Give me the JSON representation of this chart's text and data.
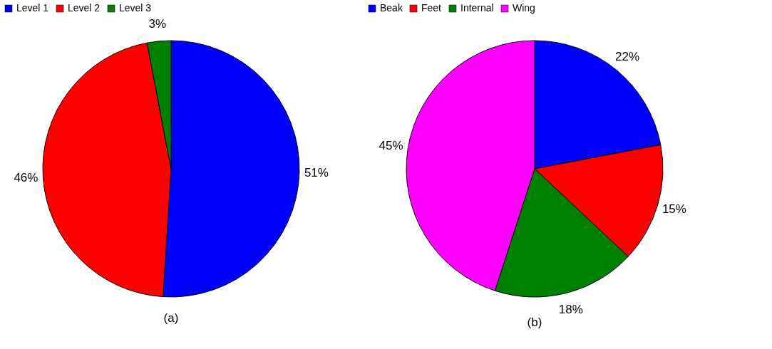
{
  "chart_data": [
    {
      "type": "pie",
      "title": "(a)",
      "categories": [
        "Level 1",
        "Level 2",
        "Level 3"
      ],
      "values": [
        51,
        46,
        3
      ],
      "colors": [
        "#0000ff",
        "#ff0000",
        "#008000"
      ],
      "value_labels": [
        "51%",
        "46%",
        "3%"
      ],
      "legend": "top"
    },
    {
      "type": "pie",
      "title": "(b)",
      "categories": [
        "Beak",
        "Feet",
        "Internal",
        "Wing"
      ],
      "values": [
        22,
        15,
        18,
        45
      ],
      "colors": [
        "#0000ff",
        "#ff0000",
        "#008000",
        "#ff00ff"
      ],
      "value_labels": [
        "22%",
        "15%",
        "18%",
        "45%"
      ],
      "legend": "top"
    }
  ]
}
